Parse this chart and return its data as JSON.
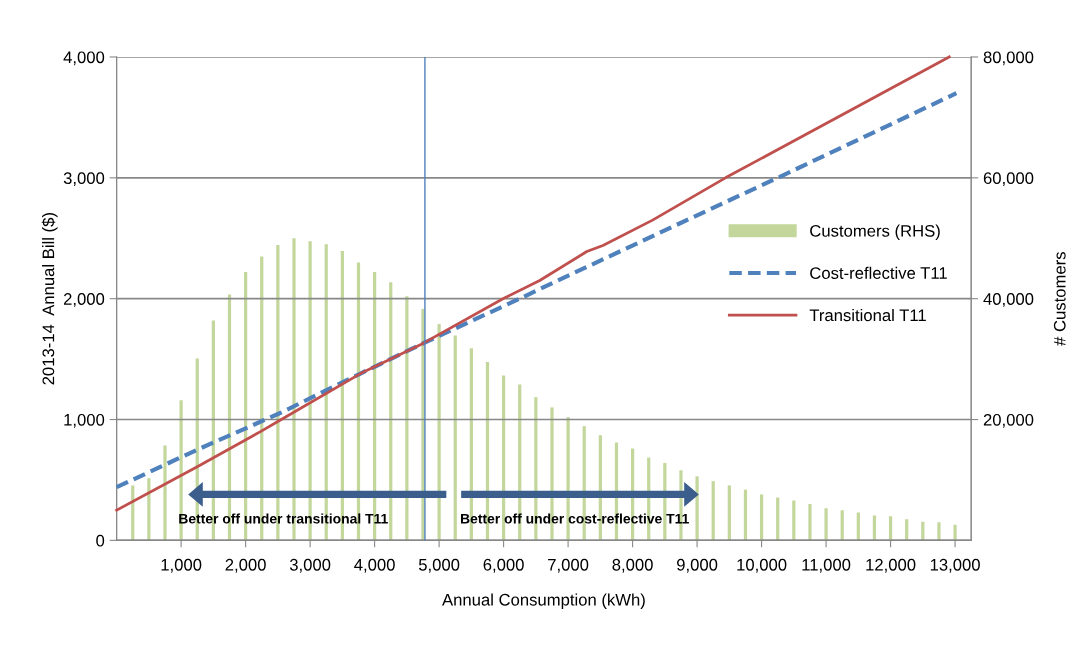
{
  "chart_data": {
    "type": "bar",
    "xlabel": "Annual Consumption (kWh)",
    "ylabel": "2013-14  Annual Bill ($)",
    "y2label": "# Customers",
    "xlim": [
      0,
      13250
    ],
    "xticks": [
      {
        "value": 1000,
        "label": "1,000"
      },
      {
        "value": 2000,
        "label": "2,000"
      },
      {
        "value": 3000,
        "label": "3,000"
      },
      {
        "value": 4000,
        "label": "4,000"
      },
      {
        "value": 5000,
        "label": "5,000"
      },
      {
        "value": 6000,
        "label": "6,000"
      },
      {
        "value": 7000,
        "label": "7,000"
      },
      {
        "value": 8000,
        "label": "8,000"
      },
      {
        "value": 9000,
        "label": "9,000"
      },
      {
        "value": 10000,
        "label": "10,000"
      },
      {
        "value": 11000,
        "label": "11,000"
      },
      {
        "value": 12000,
        "label": "12,000"
      },
      {
        "value": 13000,
        "label": "13,000"
      }
    ],
    "ylim": [
      0,
      4000
    ],
    "yticks": [
      0,
      {
        "value": 1000,
        "label": "1,000"
      },
      {
        "value": 2000,
        "label": "2,000"
      },
      {
        "value": 3000,
        "label": "3,000"
      },
      {
        "value": 4000,
        "label": "4,000"
      }
    ],
    "y2lim": [
      0,
      80000
    ],
    "y2ticks": [
      {
        "value": 20000,
        "label": "20,000"
      },
      {
        "value": 40000,
        "label": "40,000"
      },
      {
        "value": 60000,
        "label": "60,000"
      },
      {
        "value": 80000,
        "label": "80,000"
      }
    ],
    "grid": "y",
    "legend": "right",
    "series": [
      {
        "name": "Customers (RHS)",
        "axis": "y2",
        "color": "#c3d69b",
        "x": [
          250,
          500,
          750,
          1000,
          1250,
          1500,
          1750,
          2000,
          2250,
          2500,
          2750,
          3000,
          3250,
          3500,
          3750,
          4000,
          4250,
          4500,
          4750,
          5000,
          5250,
          5500,
          5750,
          6000,
          6250,
          6500,
          6750,
          7000,
          7250,
          7500,
          7750,
          8000,
          8250,
          8500,
          8750,
          9000,
          9250,
          9500,
          9750,
          10000,
          10250,
          10500,
          10750,
          11000,
          11250,
          11500,
          11750,
          12000,
          12250,
          12500,
          12750,
          13000
        ],
        "values": [
          9100,
          10300,
          15700,
          23200,
          30100,
          36400,
          40700,
          44400,
          47000,
          48900,
          50000,
          49500,
          49000,
          47900,
          46000,
          44400,
          42700,
          40400,
          38300,
          35800,
          33900,
          31800,
          29500,
          27300,
          25800,
          23700,
          22000,
          20400,
          18900,
          17400,
          16200,
          15200,
          13700,
          12800,
          11600,
          10600,
          9800,
          9100,
          8400,
          7600,
          7100,
          6600,
          6000,
          5300,
          5000,
          4600,
          4100,
          4000,
          3500,
          3100,
          3000,
          2600
        ]
      },
      {
        "name": "Cost-reflective T11",
        "type": "line",
        "line_style": "dashed",
        "color": "#4f81bd",
        "x": [
          0,
          1250,
          2520,
          3780,
          4750,
          6250,
          6560,
          8840,
          10250,
          13020
        ],
        "values": [
          440,
          750,
          1050,
          1380,
          1630,
          2000,
          2080,
          2650,
          3000,
          3700
        ]
      },
      {
        "name": "Transitional T11",
        "type": "line",
        "line_style": "solid",
        "color": "#c0504d",
        "x": [
          0,
          1250,
          2230,
          2520,
          3780,
          4750,
          5990,
          6560,
          7290,
          7540,
          8310,
          9440,
          12910
        ],
        "values": [
          250,
          610,
          900,
          990,
          1380,
          1630,
          2000,
          2150,
          2390,
          2440,
          2650,
          3000,
          4000
        ]
      }
    ],
    "ref_lines": [
      {
        "axis": "x",
        "value": 4780,
        "color": "#4f81bd",
        "line_style": "solid"
      }
    ],
    "annotations": [
      "Better off under transitional T11",
      "Better off under cost-reflective T11"
    ]
  }
}
